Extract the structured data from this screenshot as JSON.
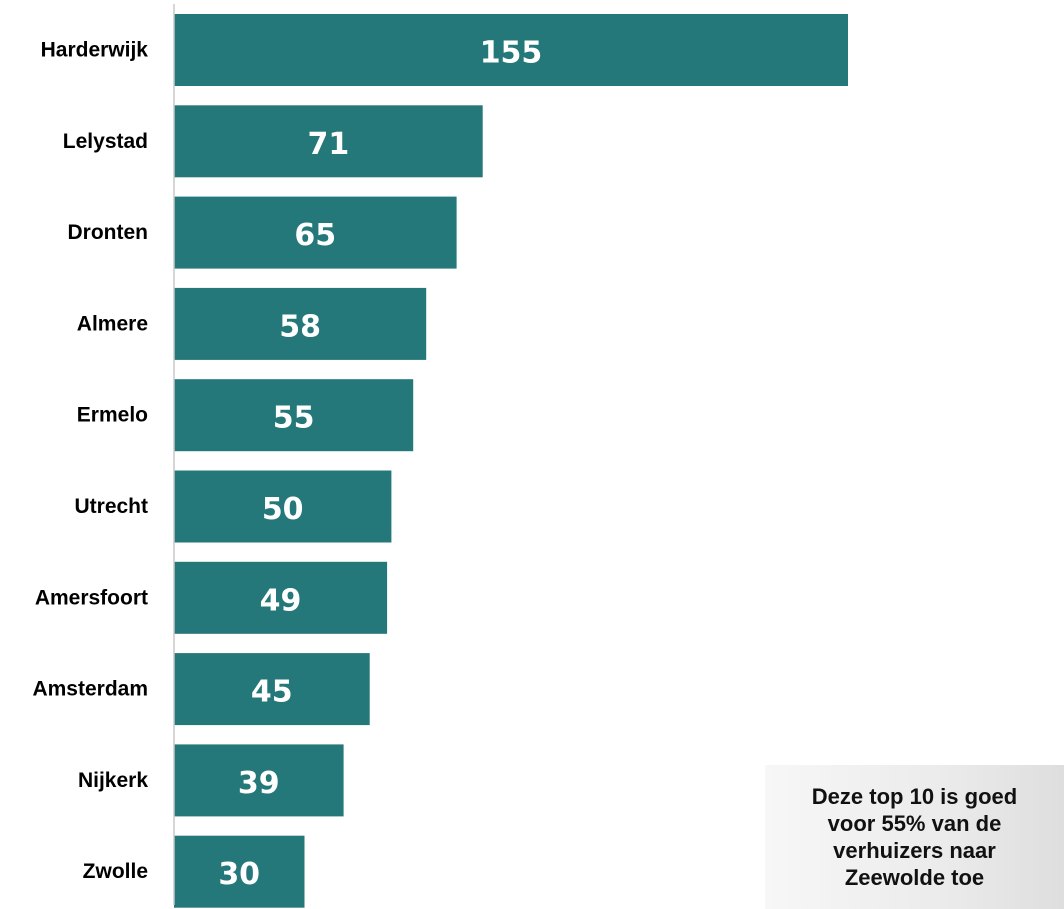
{
  "chart_data": {
    "type": "bar",
    "orientation": "horizontal",
    "categories": [
      "Harderwijk",
      "Lelystad",
      "Dronten",
      "Almere",
      "Ermelo",
      "Utrecht",
      "Amersfoort",
      "Amsterdam",
      "Nijkerk",
      "Zwolle"
    ],
    "values": [
      155,
      71,
      65,
      58,
      55,
      50,
      49,
      45,
      39,
      30
    ],
    "data_labels": [
      "155",
      "71",
      "65",
      "58",
      "55",
      "50",
      "49",
      "45",
      "39",
      "30"
    ],
    "title": "",
    "xlabel": "",
    "ylabel": "",
    "xlim": [
      0,
      155
    ],
    "grid": false,
    "legend": "none",
    "bar_color": "#24787a"
  },
  "callout": {
    "text": "Deze top 10 is goed voor 55% van de verhuizers naar Zeewolde toe"
  }
}
